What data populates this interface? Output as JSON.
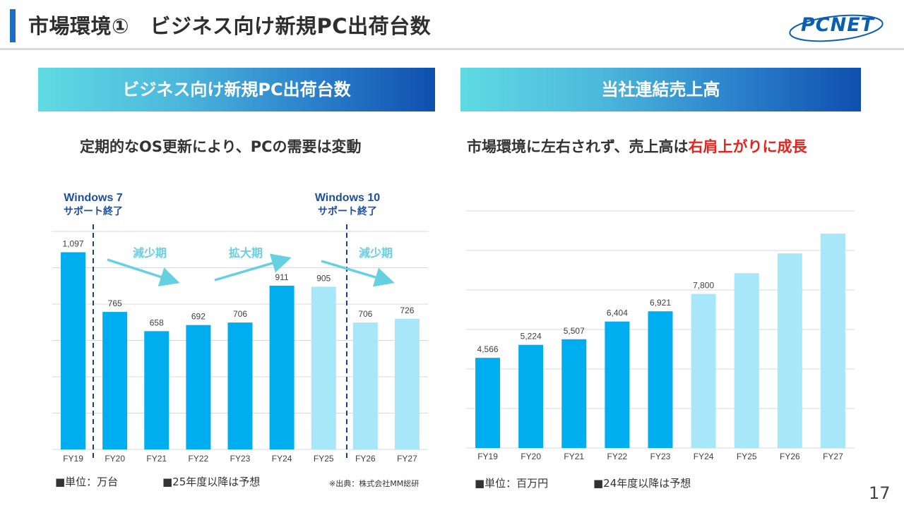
{
  "header": {
    "title": "市場環境①　ビジネス向け新規PC出荷台数",
    "logo_text": "PCNET"
  },
  "left": {
    "banner": "ビジネス向け新規PC出荷台数",
    "subtitle": "定期的なOS更新により、PCの需要は変動",
    "annotations": {
      "win7_title": "Windows 7",
      "win7_sub": "サポート終了",
      "win10_title": "Windows 10",
      "win10_sub": "サポート終了",
      "phases": [
        "減少期",
        "拡大期",
        "減少期"
      ]
    },
    "notes": {
      "unit": "■単位：万台",
      "forecast": "■25年度以降は予想",
      "source": "※出典：株式会社MM総研"
    }
  },
  "right": {
    "banner": "当社連結売上高",
    "subtitle_prefix": "市場環境に左右されず、売上高は",
    "subtitle_highlight": "右肩上がりに成長",
    "notes": {
      "unit": "■単位：百万円",
      "forecast": "■24年度以降は予想"
    }
  },
  "page_number": "17",
  "colors": {
    "actual": "#00aeef",
    "forecast": "#a8e6fa",
    "arrow": "#66d0e3",
    "dashed_line": "#1f3c88",
    "windows_label": "#1f4e9c",
    "highlight": "#e8231d",
    "grid": "#d9d9d9"
  },
  "chart_data": [
    {
      "type": "bar",
      "title": "ビジネス向け新規PC出荷台数",
      "categories": [
        "FY19",
        "FY20",
        "FY21",
        "FY22",
        "FY23",
        "FY24",
        "FY25",
        "FY26",
        "FY27"
      ],
      "values": [
        1097,
        765,
        658,
        692,
        706,
        911,
        905,
        706,
        726
      ],
      "data_labels": [
        "1,097",
        "765",
        "658",
        "692",
        "706",
        "911",
        "905",
        "706",
        "726"
      ],
      "forecast": [
        false,
        false,
        false,
        false,
        false,
        false,
        true,
        true,
        true
      ],
      "ylim": [
        0,
        1150
      ],
      "grid": true,
      "xlabel": "",
      "ylabel": ""
    },
    {
      "type": "bar",
      "title": "当社連結売上高",
      "categories": [
        "FY19",
        "FY20",
        "FY21",
        "FY22",
        "FY23",
        "FY24",
        "FY25",
        "FY26",
        "FY27"
      ],
      "values": [
        4566,
        5224,
        5507,
        6404,
        6921,
        7800,
        8850,
        9850,
        10850
      ],
      "data_labels": [
        "4,566",
        "5,224",
        "5,507",
        "6,404",
        "6,921",
        "7,800",
        "",
        "",
        ""
      ],
      "forecast": [
        false,
        false,
        false,
        false,
        false,
        true,
        true,
        true,
        true
      ],
      "ylim": [
        0,
        12000
      ],
      "grid": true,
      "xlabel": "",
      "ylabel": ""
    }
  ]
}
